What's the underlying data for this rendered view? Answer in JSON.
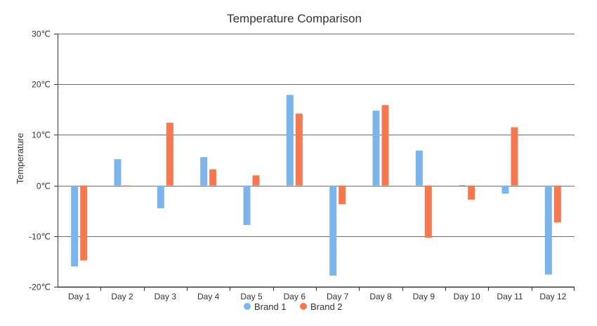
{
  "chart_data": {
    "type": "bar",
    "title": "Temperature Comparison",
    "xlabel": "",
    "ylabel": "Temperature",
    "unit": "℃",
    "ylim": [
      -20,
      30
    ],
    "yticks": [
      -20,
      -10,
      0,
      10,
      20,
      30
    ],
    "ytick_labels": [
      "-20℃",
      "-10℃",
      "0℃",
      "10℃",
      "20℃",
      "30℃"
    ],
    "grid": true,
    "legend_position": "bottom",
    "categories": [
      "Day 1",
      "Day 2",
      "Day 3",
      "Day 4",
      "Day 5",
      "Day 6",
      "Day 7",
      "Day 8",
      "Day 9",
      "Day 10",
      "Day 11",
      "Day 12"
    ],
    "series": [
      {
        "name": "Brand 1",
        "color": "#7cb5ec",
        "values": [
          -16,
          5.2,
          -4.5,
          5.6,
          -7.8,
          17.9,
          -17.8,
          14.8,
          6.9,
          0.1,
          -1.6,
          -17.6
        ]
      },
      {
        "name": "Brand 2",
        "color": "#f7784f",
        "values": [
          -14.8,
          0,
          12.4,
          3.2,
          2,
          14.2,
          -3.7,
          15.9,
          -10.3,
          -2.8,
          11.5,
          -7.3
        ]
      }
    ]
  }
}
